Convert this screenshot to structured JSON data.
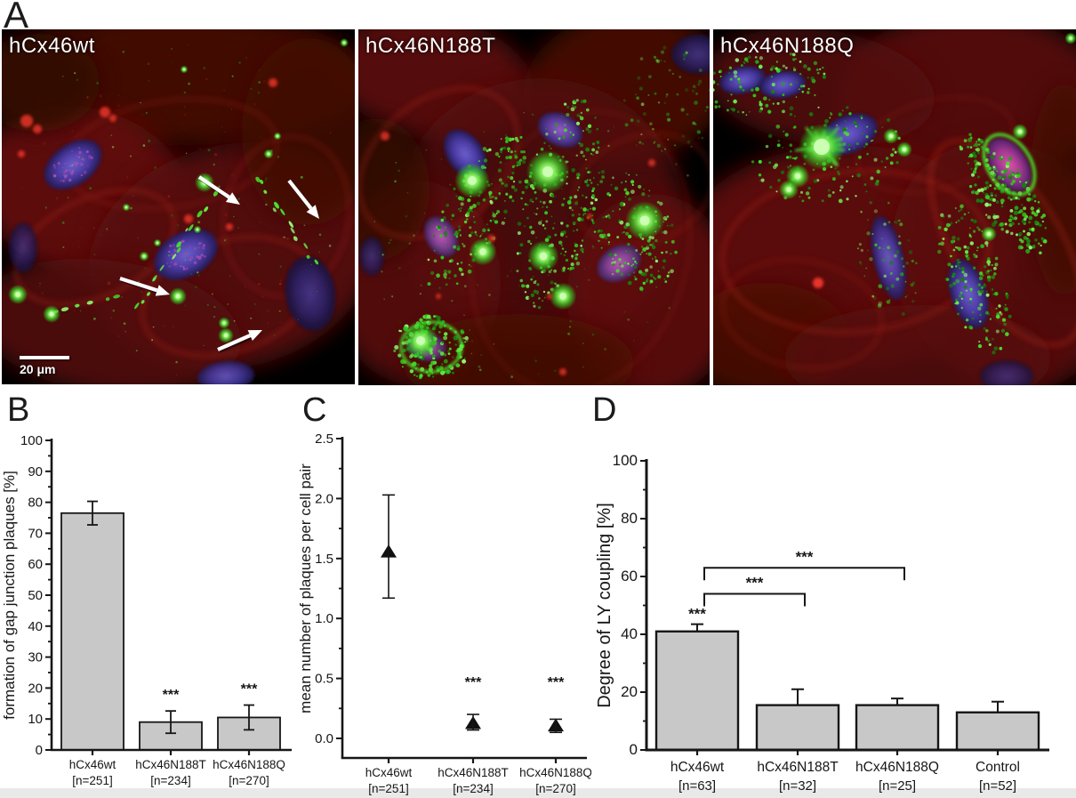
{
  "figure": {
    "panels": {
      "a": "A",
      "b": "B",
      "c": "C",
      "d": "D"
    },
    "colors": {
      "micrograph_green": "#2ecb1f",
      "micrograph_red": "#7a120b",
      "micrograph_nucleus_blue": "#4a44b4",
      "bar_fill": "#c8c8c8",
      "axis_black": "#161616"
    }
  },
  "panel_a": {
    "images": [
      {
        "label": "hCx46wt",
        "scale_bar_text": "20 μm",
        "arrow_count": 4
      },
      {
        "label": "hCx46N188T"
      },
      {
        "label": "hCx46N188Q"
      }
    ]
  },
  "chart_data": [
    {
      "id": "B",
      "type": "bar",
      "ylabel": "formation of gap junction plaques [%]",
      "ylim": [
        0,
        100
      ],
      "ytick_step": 10,
      "minor_step": 5,
      "ytick_labels": [
        "0",
        "10",
        "20",
        "30",
        "40",
        "50",
        "60",
        "70",
        "80",
        "90",
        "100"
      ],
      "categories": [
        "hCx46wt",
        "hCx46N188T",
        "hCx46N188Q"
      ],
      "n_labels": [
        "[n=251]",
        "[n=234]",
        "[n=270]"
      ],
      "values": [
        76.5,
        9,
        10.5
      ],
      "errors_up": [
        3.8,
        3.6,
        4.0
      ],
      "errors_down": [
        3.8,
        3.6,
        4.0
      ],
      "significance": [
        null,
        "***",
        "***"
      ],
      "bar_color": "#c8c8c8",
      "grid": false,
      "legend": "none"
    },
    {
      "id": "C",
      "type": "scatter",
      "ylabel": "mean number of plaques per cell pair",
      "ylim": [
        0,
        2.5
      ],
      "ytick_step": 0.5,
      "minor_step": 0.25,
      "ytick_labels": [
        "0.0",
        "0.5",
        "1.0",
        "1.5",
        "2.0",
        "2.5"
      ],
      "categories": [
        "hCx46wt",
        "hCx46N188T",
        "hCx46N188Q"
      ],
      "n_labels": [
        "[n=251]",
        "[n=234]",
        "[n=270]"
      ],
      "values": [
        1.55,
        0.12,
        0.1
      ],
      "errors_up": [
        0.48,
        0.08,
        0.06
      ],
      "errors_down": [
        0.38,
        0.05,
        0.05
      ],
      "significance": [
        null,
        "***",
        "***"
      ],
      "marker": "triangle",
      "marker_color": "#111111",
      "grid": false,
      "legend": "none"
    },
    {
      "id": "D",
      "type": "bar",
      "ylabel": "Degree of LY coupling [%]",
      "ylim": [
        0,
        100
      ],
      "ytick_step": 20,
      "minor_step": 10,
      "ytick_labels": [
        "0",
        "20",
        "40",
        "60",
        "80",
        "100"
      ],
      "categories": [
        "hCx46wt",
        "hCx46N188T",
        "hCx46N188Q",
        "Control"
      ],
      "n_labels": [
        "[n=63]",
        "[n=32]",
        "[n=25]",
        "[n=52]"
      ],
      "values": [
        41,
        15.5,
        15.5,
        13
      ],
      "errors_up": [
        2.5,
        5.5,
        2.3,
        3.7
      ],
      "significance": [
        "***",
        null,
        null,
        null
      ],
      "brackets": [
        {
          "from": 0,
          "to": 1,
          "y": 54,
          "label": "***"
        },
        {
          "from": 0,
          "to": 2,
          "y": 63,
          "label": "***"
        }
      ],
      "bar_color": "#c8c8c8",
      "grid": false,
      "legend": "none"
    }
  ]
}
